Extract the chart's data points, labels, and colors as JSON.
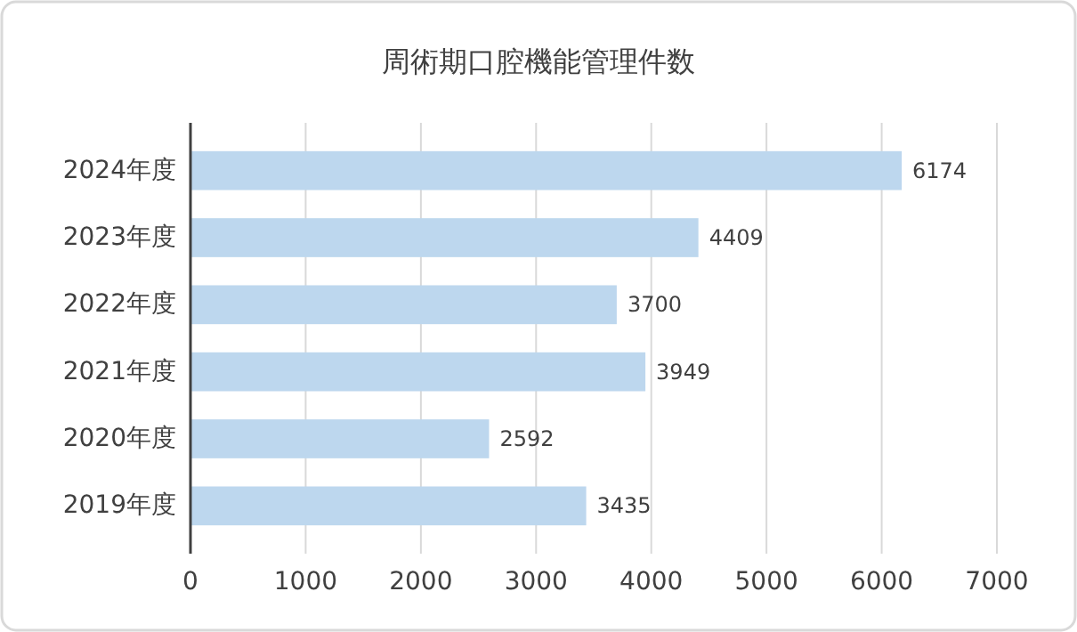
{
  "chart_data": {
    "type": "bar",
    "title": "周術期口腔機能管理件数",
    "orientation": "horizontal",
    "categories": [
      "2024年度",
      "2023年度",
      "2022年度",
      "2021年度",
      "2020年度",
      "2019年度"
    ],
    "values": [
      6174,
      4409,
      3700,
      3949,
      2592,
      3435
    ],
    "color": "#bdd7ee",
    "xlim": [
      0,
      7000
    ],
    "xticks": [
      0,
      1000,
      2000,
      3000,
      4000,
      5000,
      6000,
      7000
    ],
    "grid": "x",
    "data_labels": true
  }
}
